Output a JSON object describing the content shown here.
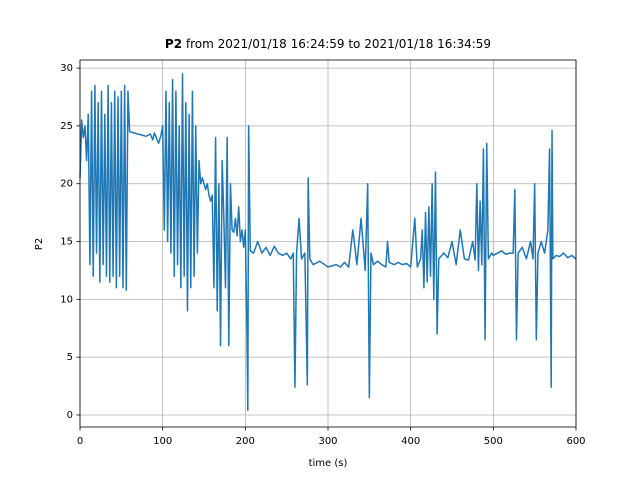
{
  "chart_data": {
    "type": "line",
    "title_bold": "P2",
    "title": "from 2021/01/18 16:24:59 to 2021/01/18 16:34:59",
    "x_label": "time (s)",
    "y_label": "P2",
    "color": "#1f77b4",
    "grid": true,
    "xlim": [
      0,
      600
    ],
    "ylim": [
      -1.04,
      30.7
    ],
    "xticks": [
      0,
      100,
      200,
      300,
      400,
      500,
      600
    ],
    "yticks": [
      0,
      5,
      10,
      15,
      20,
      25,
      30
    ],
    "x": [
      0,
      2,
      4,
      6,
      8,
      10,
      12,
      14,
      16,
      18,
      20,
      22,
      24,
      26,
      28,
      30,
      32,
      34,
      36,
      38,
      40,
      42,
      44,
      46,
      48,
      50,
      52,
      54,
      56,
      58,
      60,
      65,
      70,
      75,
      80,
      85,
      88,
      90,
      95,
      98,
      100,
      102,
      104,
      106,
      108,
      110,
      112,
      114,
      116,
      118,
      120,
      122,
      124,
      126,
      128,
      130,
      132,
      134,
      136,
      138,
      140,
      142,
      144,
      146,
      148,
      150,
      152,
      154,
      156,
      158,
      160,
      162,
      164,
      166,
      168,
      170,
      172,
      174,
      176,
      178,
      180,
      182,
      184,
      186,
      188,
      190,
      192,
      194,
      196,
      198,
      200,
      202,
      203,
      204,
      206,
      210,
      215,
      220,
      225,
      230,
      235,
      240,
      245,
      250,
      255,
      258,
      260,
      262,
      265,
      268,
      272,
      275,
      276,
      278,
      282,
      290,
      300,
      310,
      315,
      320,
      325,
      330,
      335,
      340,
      345,
      348,
      350,
      352,
      355,
      360,
      365,
      370,
      372,
      374,
      380,
      385,
      390,
      395,
      400,
      405,
      408,
      412,
      414,
      416,
      418,
      420,
      422,
      424,
      426,
      428,
      430,
      432,
      434,
      440,
      445,
      450,
      455,
      460,
      465,
      470,
      475,
      478,
      480,
      482,
      484,
      486,
      488,
      490,
      492,
      494,
      498,
      500,
      510,
      515,
      520,
      524,
      526,
      528,
      530,
      535,
      540,
      545,
      548,
      550,
      552,
      554,
      558,
      562,
      566,
      568,
      570,
      571,
      572,
      576,
      580,
      585,
      590,
      595,
      600
    ],
    "values": [
      20.5,
      25.5,
      24,
      25,
      22,
      26,
      13,
      28,
      12,
      28.5,
      14,
      27,
      11.5,
      28,
      13,
      26,
      12,
      28.5,
      11.5,
      27,
      12,
      28,
      11,
      27.5,
      12,
      28,
      11,
      28.5,
      10.8,
      28,
      24.5,
      24.4,
      24.3,
      24.2,
      24.1,
      24.3,
      23.8,
      24.4,
      23.5,
      24.2,
      25,
      16,
      28,
      15,
      27,
      14,
      29,
      12,
      28,
      13,
      25,
      11,
      29.5,
      12,
      27,
      9,
      26,
      11,
      28,
      12,
      25,
      14,
      22,
      20,
      20.5,
      20,
      19.5,
      20,
      19,
      18.5,
      19,
      11,
      24,
      9,
      20,
      6,
      22,
      17,
      11,
      24,
      6,
      20,
      16,
      15.8,
      17,
      15.5,
      18,
      15,
      16,
      14.5,
      16,
      7,
      0.4,
      25,
      14.2,
      14,
      15,
      14,
      14.5,
      13.8,
      14.6,
      14,
      13.8,
      14,
      13.5,
      14,
      2.4,
      14,
      17,
      13.5,
      14,
      2.6,
      20.5,
      13.5,
      13,
      13.3,
      12.8,
      13,
      12.8,
      13.2,
      12.8,
      16,
      13,
      17,
      12.5,
      20,
      1.5,
      14,
      13,
      13.3,
      13,
      12.8,
      15,
      13.2,
      13,
      13.2,
      13,
      13.1,
      12.8,
      17,
      12.8,
      13.5,
      16,
      11,
      17.5,
      11.5,
      18,
      12,
      20,
      10,
      21,
      7,
      13.5,
      14,
      13.6,
      15,
      13,
      16,
      13.5,
      13.4,
      15,
      13.4,
      20,
      12.5,
      18.5,
      13,
      23,
      6.5,
      23.5,
      13.5,
      14,
      13.8,
      14.2,
      13.9,
      14,
      14,
      19.5,
      6.5,
      14,
      14.5,
      13.5,
      15,
      13.5,
      20,
      6.5,
      14,
      15,
      14,
      16,
      23,
      2.4,
      24.6,
      13.5,
      13.8,
      13.7,
      14,
      13.6,
      13.8,
      13.5
    ]
  }
}
